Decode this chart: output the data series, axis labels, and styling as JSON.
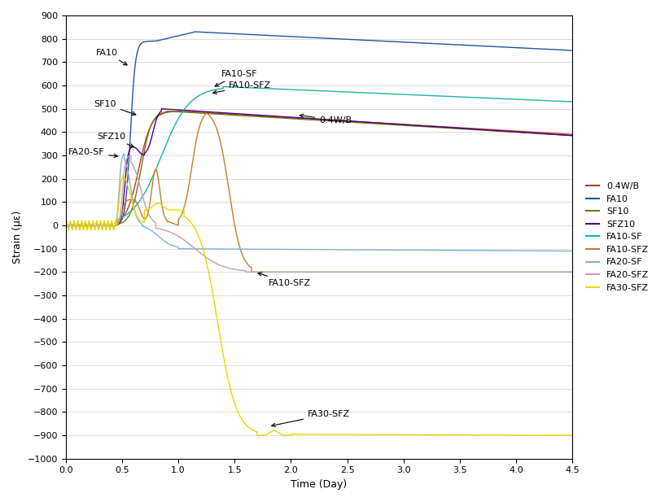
{
  "title": "",
  "xlabel": "Time (Day)",
  "ylabel": "Strain (με)",
  "xlim": [
    0.0,
    4.5
  ],
  "ylim": [
    -1000,
    900
  ],
  "yticks": [
    -1000,
    -900,
    -800,
    -700,
    -600,
    -500,
    -400,
    -300,
    -200,
    -100,
    0,
    100,
    200,
    300,
    400,
    500,
    600,
    700,
    800,
    900
  ],
  "xticks": [
    0.0,
    0.5,
    1.0,
    1.5,
    2.0,
    2.5,
    3.0,
    3.5,
    4.0,
    4.5
  ],
  "colors": {
    "0.4W/B": "#c0392b",
    "FA10": "#2155a3",
    "SF10": "#6b7a1a",
    "SFZ10": "#4b0082",
    "FA10-SF": "#1ab3a0",
    "FA10-SFZ": "#c97c2a",
    "FA20-SF": "#7fb3d3",
    "FA20-SFZ": "#c4a0b0",
    "FA30-SFZ": "#e8d800"
  },
  "figsize": [
    8.17,
    6.17
  ],
  "dpi": 100
}
